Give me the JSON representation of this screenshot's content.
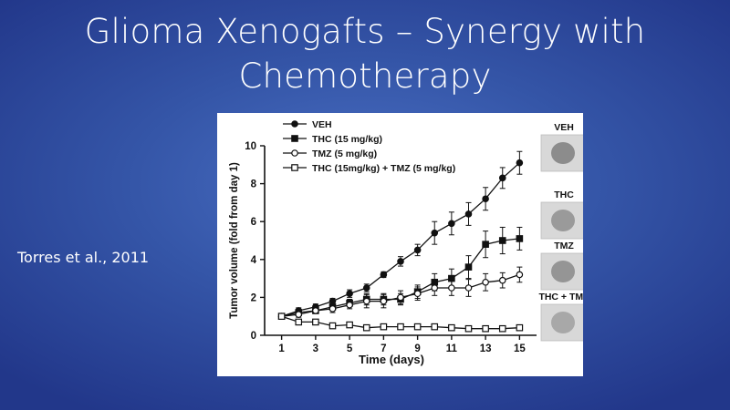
{
  "slide": {
    "title": "Glioma Xenogafts – Synergy with Chemotherapy",
    "citation": "Torres et al., 2011"
  },
  "chart_data": {
    "type": "line",
    "xlabel": "Time (days)",
    "ylabel": "Tumor volume (fold from day 1)",
    "xlim": [
      0,
      16
    ],
    "ylim": [
      0,
      10
    ],
    "x_ticks": [
      1,
      3,
      5,
      7,
      9,
      11,
      13,
      15
    ],
    "y_ticks": [
      0,
      2,
      4,
      6,
      8,
      10
    ],
    "legend_position": "top-left",
    "grid": false,
    "series": [
      {
        "name": "VEH",
        "marker": "filled-circle",
        "x": [
          1,
          2,
          3,
          4,
          5,
          6,
          7,
          8,
          9,
          10,
          11,
          12,
          13,
          14,
          15
        ],
        "y": [
          1.0,
          1.3,
          1.5,
          1.8,
          2.2,
          2.5,
          3.2,
          3.9,
          4.5,
          5.4,
          5.9,
          6.4,
          7.2,
          8.3,
          9.1
        ],
        "err": [
          0.1,
          0.15,
          0.15,
          0.15,
          0.2,
          0.2,
          0.15,
          0.25,
          0.3,
          0.6,
          0.6,
          0.6,
          0.6,
          0.55,
          0.6
        ]
      },
      {
        "name": "THC (15 mg/kg)",
        "marker": "filled-square",
        "x": [
          1,
          2,
          3,
          4,
          5,
          6,
          7,
          8,
          9,
          10,
          11,
          12,
          13,
          14,
          15
        ],
        "y": [
          1.0,
          1.2,
          1.3,
          1.5,
          1.7,
          1.9,
          1.9,
          1.9,
          2.3,
          2.8,
          3.0,
          3.6,
          4.8,
          5.0,
          5.1
        ],
        "err": [
          0.1,
          0.15,
          0.15,
          0.2,
          0.2,
          0.3,
          0.3,
          0.3,
          0.35,
          0.45,
          0.5,
          0.6,
          0.7,
          0.7,
          0.6
        ]
      },
      {
        "name": "TMZ (5 mg/kg)",
        "marker": "open-circle",
        "x": [
          1,
          2,
          3,
          4,
          5,
          6,
          7,
          8,
          9,
          10,
          11,
          12,
          13,
          14,
          15
        ],
        "y": [
          1.0,
          1.1,
          1.3,
          1.4,
          1.6,
          1.8,
          1.8,
          2.0,
          2.2,
          2.5,
          2.5,
          2.5,
          2.8,
          2.9,
          3.2
        ],
        "err": [
          0.1,
          0.15,
          0.15,
          0.2,
          0.2,
          0.35,
          0.35,
          0.35,
          0.35,
          0.4,
          0.4,
          0.45,
          0.45,
          0.4,
          0.4
        ]
      },
      {
        "name": "THC (15mg/kg) + TMZ (5 mg/kg)",
        "marker": "open-square",
        "x": [
          1,
          2,
          3,
          4,
          5,
          6,
          7,
          8,
          9,
          10,
          11,
          12,
          13,
          14,
          15
        ],
        "y": [
          1.0,
          0.7,
          0.7,
          0.5,
          0.55,
          0.4,
          0.45,
          0.45,
          0.45,
          0.45,
          0.4,
          0.35,
          0.35,
          0.35,
          0.4
        ],
        "err": [
          0.05,
          0.05,
          0.05,
          0.05,
          0.05,
          0.05,
          0.05,
          0.05,
          0.05,
          0.05,
          0.05,
          0.05,
          0.05,
          0.05,
          0.05
        ]
      }
    ],
    "tumor_images": [
      {
        "label": "VEH",
        "fill": "#8c8c8c"
      },
      {
        "label": "THC",
        "fill": "#9a9a9a"
      },
      {
        "label": "TMZ",
        "fill": "#959595"
      },
      {
        "label": "THC + TMZ",
        "fill": "#a8a8a8"
      }
    ]
  }
}
